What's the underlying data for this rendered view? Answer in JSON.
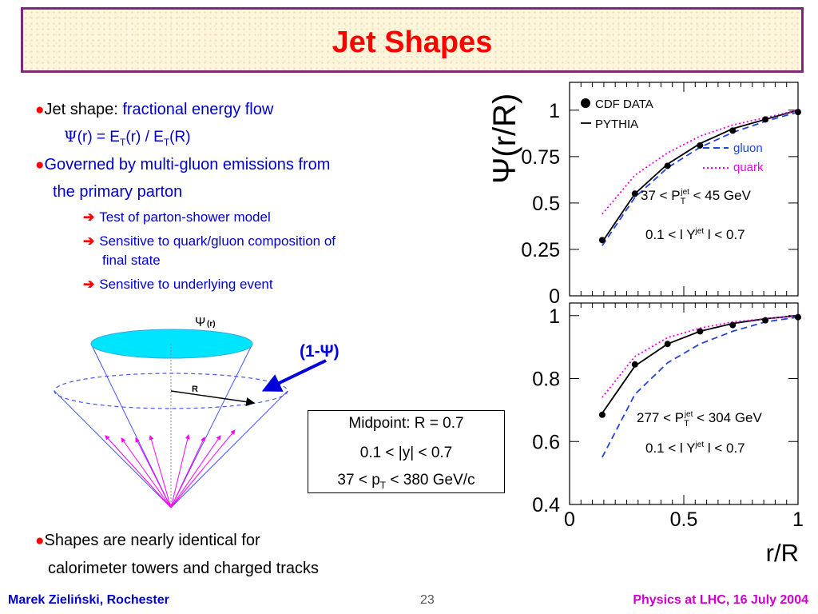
{
  "slide": {
    "title": "Jet Shapes",
    "bullet1_prefix": "Jet shape: ",
    "bullet1_highlight": "fractional energy flow",
    "formula": {
      "psi": "Ψ",
      "part1": "(r) = E",
      "sub1": "T",
      "part2": "(r) / E",
      "sub2": "T",
      "part3": "(R)"
    },
    "bullet2_line1": "Governed by multi-gluon emissions from",
    "bullet2_line2": "the primary parton",
    "sub_bullets": [
      "Test of parton-shower model",
      "Sensitive to quark/gluon composition of",
      "final state",
      "Sensitive to underlying event"
    ],
    "bullet3_line1": "Shapes are nearly identical for",
    "bullet3_line2": "calorimeter towers and charged tracks",
    "arrow_glyph": "➔",
    "bullet_glyph": "●"
  },
  "diagram": {
    "psi_label": "Ψ",
    "psi_sub": "(r)",
    "r_label": "R",
    "one_minus_psi": "(1-Ψ)"
  },
  "midbox": {
    "line1": "Midpoint: R = 0.7",
    "line2": "0.1 < |y| < 0.7",
    "line3_a": "37 < p",
    "line3_sub": "T",
    "line3_b": " < 380 GeV/c"
  },
  "footer": {
    "left": "Marek Zieliński, Rochester",
    "page": "23",
    "right": "Physics at LHC,  16 July 2004"
  },
  "chart_data": [
    {
      "type": "line",
      "ylabel": "Ψ(r/R)",
      "xlabel": "",
      "xlim": [
        0,
        1
      ],
      "ylim": [
        0,
        1.15
      ],
      "yticks": [
        "0",
        "0.25",
        "0.5",
        "0.75",
        "1"
      ],
      "legend": [
        "CDF DATA",
        "PYTHIA",
        "gluon",
        "quark"
      ],
      "annotation1": {
        "a": "37 < P",
        "sub": "T",
        "sup": "jet",
        "b": " < 45 GeV"
      },
      "annotation2": {
        "a": "0.1 < l Y",
        "sup": "jet",
        "b": " l < 0.7"
      },
      "series": [
        {
          "name": "CDF DATA",
          "x": [
            0.143,
            0.286,
            0.429,
            0.571,
            0.714,
            0.857,
            1.0
          ],
          "y": [
            0.3,
            0.55,
            0.7,
            0.81,
            0.89,
            0.95,
            0.99
          ]
        },
        {
          "name": "PYTHIA",
          "x": [
            0.143,
            0.286,
            0.429,
            0.571,
            0.714,
            0.857,
            1.0
          ],
          "y": [
            0.29,
            0.55,
            0.71,
            0.82,
            0.9,
            0.95,
            1.0
          ]
        },
        {
          "name": "gluon",
          "x": [
            0.143,
            0.286,
            0.429,
            0.571,
            0.714,
            0.857,
            1.0
          ],
          "y": [
            0.27,
            0.53,
            0.69,
            0.8,
            0.88,
            0.94,
            0.99
          ]
        },
        {
          "name": "quark",
          "x": [
            0.143,
            0.286,
            0.429,
            0.571,
            0.714,
            0.857,
            1.0
          ],
          "y": [
            0.44,
            0.65,
            0.77,
            0.86,
            0.92,
            0.96,
            1.0
          ]
        }
      ]
    },
    {
      "type": "line",
      "ylabel": "",
      "xlabel": "r/R",
      "xlim": [
        0,
        1
      ],
      "ylim": [
        0.4,
        1.04
      ],
      "xticks": [
        "0",
        "0.5",
        "1"
      ],
      "yticks": [
        "0.4",
        "0.6",
        "0.8",
        "1"
      ],
      "annotation1": {
        "a": "277 < P",
        "sub": "T",
        "sup": "jet",
        "b": " < 304 GeV"
      },
      "annotation2": {
        "a": "0.1 < l Y",
        "sup": "jet",
        "b": " l < 0.7"
      },
      "series": [
        {
          "name": "CDF DATA",
          "x": [
            0.143,
            0.286,
            0.429,
            0.571,
            0.714,
            0.857,
            1.0
          ],
          "y": [
            0.685,
            0.845,
            0.91,
            0.95,
            0.97,
            0.985,
            0.995
          ]
        },
        {
          "name": "PYTHIA",
          "x": [
            0.143,
            0.286,
            0.429,
            0.571,
            0.714,
            0.857,
            1.0
          ],
          "y": [
            0.69,
            0.84,
            0.91,
            0.95,
            0.975,
            0.99,
            1.0
          ]
        },
        {
          "name": "gluon",
          "x": [
            0.143,
            0.286,
            0.429,
            0.571,
            0.714,
            0.857,
            1.0
          ],
          "y": [
            0.55,
            0.75,
            0.85,
            0.91,
            0.95,
            0.98,
            0.995
          ]
        },
        {
          "name": "quark",
          "x": [
            0.143,
            0.286,
            0.429,
            0.571,
            0.714,
            0.857,
            1.0
          ],
          "y": [
            0.74,
            0.87,
            0.93,
            0.96,
            0.98,
            0.99,
            1.0
          ]
        }
      ]
    }
  ],
  "colors": {
    "title": "#ff0000",
    "text_blue": "#0000cc",
    "footer_right": "#cc00cc",
    "gluon": "#2244dd",
    "quark": "#ee00ee",
    "cone_top": "#00e5ff"
  }
}
